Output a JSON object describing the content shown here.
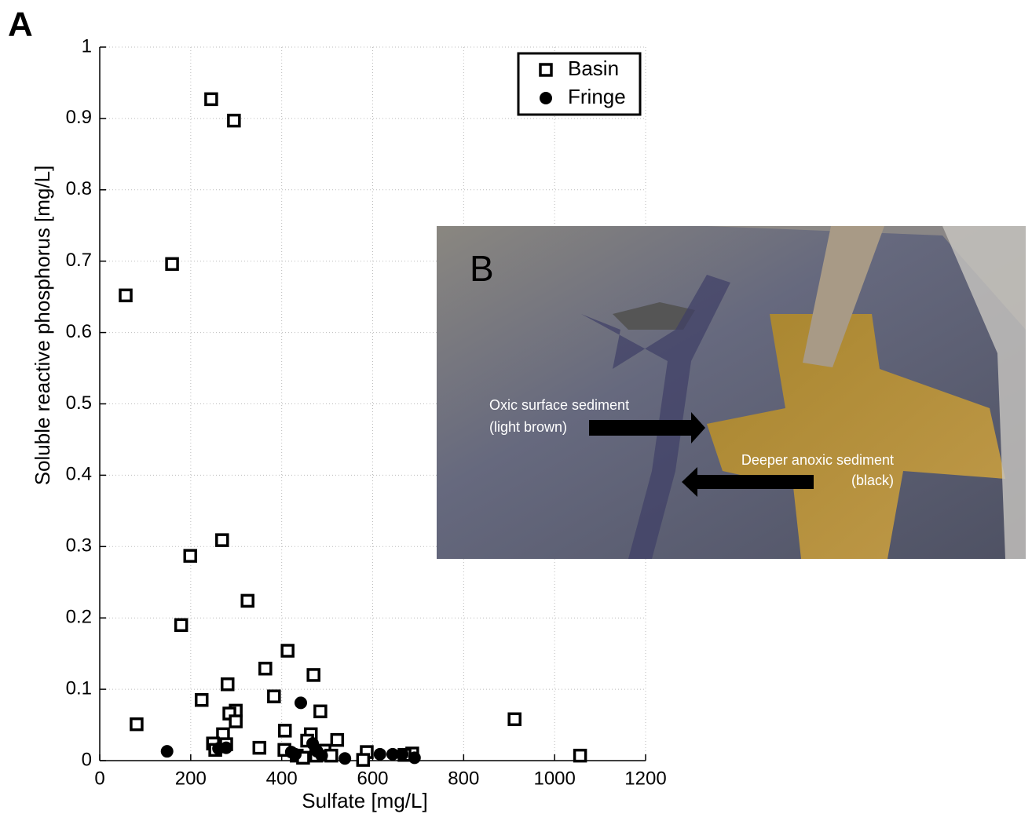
{
  "chart_data": {
    "type": "scatter",
    "panel_label": "A",
    "inset_label": "B",
    "annotations": [
      "Oxic surface sediment",
      "(light brown)",
      "Deeper anoxic sediment",
      "(black)"
    ],
    "xlabel": "Sulfate [mg/L]",
    "ylabel": "Soluble reactive phosphorus [mg/L]",
    "xlim": [
      0,
      1200
    ],
    "ylim": [
      0,
      1
    ],
    "xticks": [
      0,
      200,
      400,
      600,
      800,
      1000,
      1200
    ],
    "yticks": [
      0,
      0.1,
      0.2,
      0.3,
      0.4,
      0.5,
      0.6,
      0.7,
      0.8,
      0.9,
      1
    ],
    "grid": true,
    "legend": "upper right",
    "series": [
      {
        "name": "Basin",
        "marker": "square",
        "color": "#000000",
        "x": [
          245,
          295,
          159,
          57,
          199,
          269,
          325,
          179,
          413,
          364,
          470,
          281,
          224,
          383,
          299,
          285,
          485,
          299,
          81,
          912,
          407,
          271,
          464,
          522,
          249,
          278,
          456,
          351,
          406,
          254,
          587,
          687,
          494,
          433,
          509,
          447,
          476,
          579,
          1056,
          670
        ],
        "values": [
          0.927,
          0.897,
          0.696,
          0.652,
          0.287,
          0.309,
          0.224,
          0.19,
          0.154,
          0.129,
          0.12,
          0.107,
          0.085,
          0.09,
          0.07,
          0.066,
          0.069,
          0.055,
          0.051,
          0.058,
          0.042,
          0.037,
          0.037,
          0.029,
          0.024,
          0.023,
          0.028,
          0.018,
          0.015,
          0.015,
          0.012,
          0.01,
          0.014,
          0.007,
          0.007,
          0.004,
          0.007,
          0.001,
          0.007,
          0.008
        ]
      },
      {
        "name": "Fringe",
        "marker": "circle",
        "color": "#000000",
        "x": [
          148,
          442,
          261,
          278,
          421,
          430,
          468,
          478,
          488,
          539,
          616,
          644,
          665,
          692
        ],
        "values": [
          0.013,
          0.081,
          0.017,
          0.018,
          0.012,
          0.009,
          0.024,
          0.013,
          0.007,
          0.003,
          0.009,
          0.009,
          0.009,
          0.004
        ]
      }
    ]
  }
}
